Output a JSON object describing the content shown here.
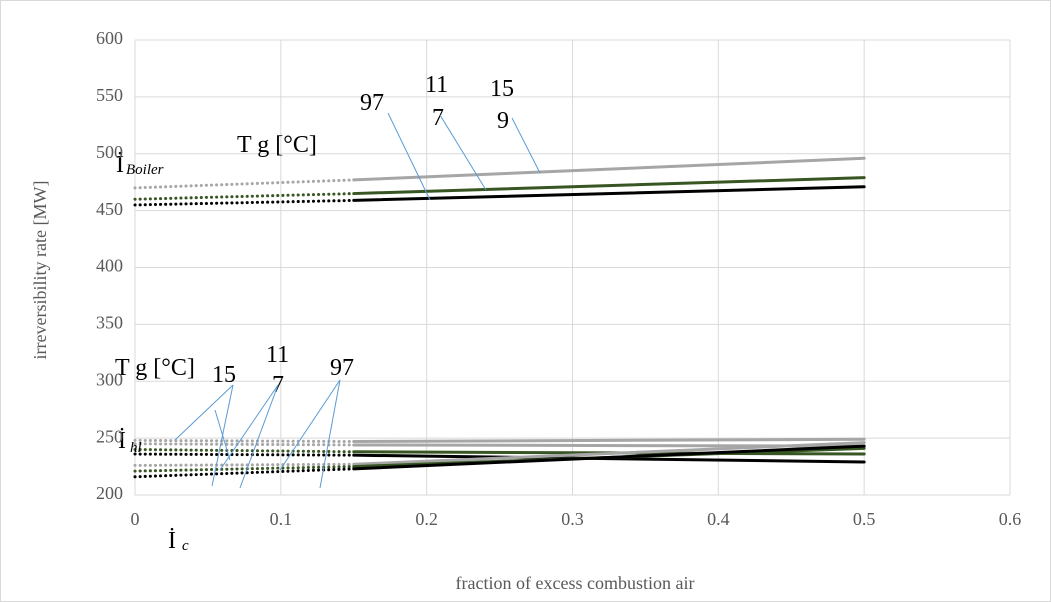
{
  "chart_data": {
    "type": "line",
    "xlabel": "fraction of excess combustion air",
    "ylabel": "irreversibility rate  [MW]",
    "xlim": [
      0,
      0.6
    ],
    "xticks": [
      0,
      0.1,
      0.2,
      0.3,
      0.4,
      0.5,
      0.6
    ],
    "ylim": [
      200,
      600
    ],
    "yticks": [
      200,
      250,
      300,
      350,
      400,
      450,
      500,
      550,
      600
    ],
    "grid": true,
    "series": [
      {
        "color": "#a6a6a6",
        "style": "dotted",
        "x": [
          0,
          0.15
        ],
        "values": [
          470,
          477
        ]
      },
      {
        "color": "#a6a6a6",
        "style": "solid",
        "x": [
          0.15,
          0.5
        ],
        "values": [
          477,
          496
        ]
      },
      {
        "color": "#375623",
        "style": "dotted",
        "x": [
          0,
          0.15
        ],
        "values": [
          460,
          465
        ]
      },
      {
        "color": "#375623",
        "style": "solid",
        "x": [
          0.15,
          0.5
        ],
        "values": [
          465,
          479
        ]
      },
      {
        "color": "#000000",
        "style": "dotted",
        "x": [
          0,
          0.15
        ],
        "values": [
          455,
          459
        ]
      },
      {
        "color": "#000000",
        "style": "solid",
        "x": [
          0.15,
          0.5
        ],
        "values": [
          459,
          471
        ]
      },
      {
        "color": "#a6a6a6",
        "style": "dotted",
        "x": [
          0,
          0.15
        ],
        "values": [
          248,
          247
        ]
      },
      {
        "color": "#a6a6a6",
        "style": "solid",
        "x": [
          0.15,
          0.5
        ],
        "values": [
          247,
          249
        ]
      },
      {
        "color": "#a6a6a6",
        "style": "dotted",
        "x": [
          0,
          0.15
        ],
        "values": [
          245,
          244
        ]
      },
      {
        "color": "#a6a6a6",
        "style": "solid",
        "x": [
          0.15,
          0.5
        ],
        "values": [
          244,
          243
        ]
      },
      {
        "color": "#375623",
        "style": "dotted",
        "x": [
          0,
          0.15
        ],
        "values": [
          240,
          238
        ]
      },
      {
        "color": "#375623",
        "style": "solid",
        "x": [
          0.15,
          0.5
        ],
        "values": [
          238,
          236
        ]
      },
      {
        "color": "#000000",
        "style": "dotted",
        "x": [
          0,
          0.15
        ],
        "values": [
          236,
          235
        ]
      },
      {
        "color": "#000000",
        "style": "solid",
        "x": [
          0.15,
          0.5
        ],
        "values": [
          235,
          229
        ]
      },
      {
        "color": "#a6a6a6",
        "style": "dotted",
        "x": [
          0,
          0.15
        ],
        "values": [
          226,
          227
        ]
      },
      {
        "color": "#a6a6a6",
        "style": "solid",
        "x": [
          0.15,
          0.5
        ],
        "values": [
          227,
          246
        ]
      },
      {
        "color": "#375623",
        "style": "dotted",
        "x": [
          0,
          0.15
        ],
        "values": [
          221,
          225
        ]
      },
      {
        "color": "#375623",
        "style": "solid",
        "x": [
          0.15,
          0.5
        ],
        "values": [
          225,
          241
        ]
      },
      {
        "color": "#000000",
        "style": "dotted",
        "x": [
          0,
          0.15
        ],
        "values": [
          216,
          223
        ]
      },
      {
        "color": "#000000",
        "style": "solid",
        "x": [
          0.15,
          0.5
        ],
        "values": [
          223,
          243
        ]
      }
    ],
    "annotations": {
      "upper_title": "T g [°C]",
      "upper_97": "97",
      "upper_117a": "11",
      "upper_117b": "7",
      "upper_159a": "15",
      "upper_159b": "9",
      "lower_title": "T g [°C]",
      "lower_15": "15",
      "lower_117a": "11",
      "lower_117b": "7",
      "lower_97": "97",
      "boiler": {
        "symbol": "İ",
        "subscript": "Boiler"
      },
      "hl": {
        "symbol": "İ",
        "subscript": "hl"
      },
      "c": {
        "symbol": "İ",
        "subscript": "c"
      }
    }
  }
}
